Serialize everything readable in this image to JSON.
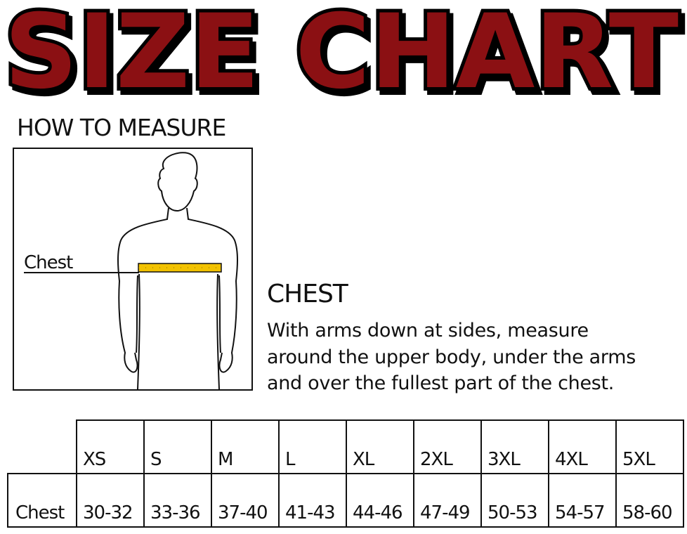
{
  "title": "SIZE CHART",
  "colors": {
    "title_fill": "#8b1013",
    "title_outline": "#000000",
    "tape": "#f2c200"
  },
  "how_to_measure": {
    "heading": "HOW TO MEASURE",
    "figure_label": "Chest"
  },
  "instructions": {
    "heading": "CHEST",
    "lines": [
      "With arms down at sides, measure",
      "around the upper body, under the arms",
      "and over the fullest part of the chest."
    ]
  },
  "table": {
    "sizes": [
      "XS",
      "S",
      "M",
      "L",
      "XL",
      "2XL",
      "3XL",
      "4XL",
      "5XL"
    ],
    "rows": [
      {
        "label": "Chest",
        "values": [
          "30-32",
          "33-36",
          "37-40",
          "41-43",
          "44-46",
          "47-49",
          "50-53",
          "54-57",
          "58-60"
        ]
      }
    ]
  }
}
